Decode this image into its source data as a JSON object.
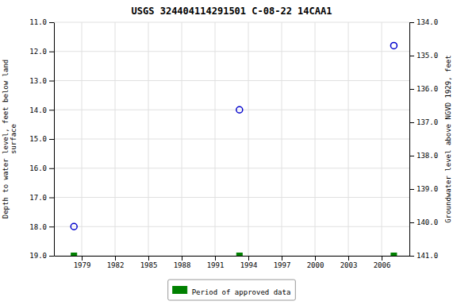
{
  "chart_data": {
    "type": "scatter",
    "title": "USGS 324404114291501 C-08-22 14CAA1",
    "ylabel": "Depth to water level, feet below land\nsurface",
    "y2label": "Groundwater level above NGVD 1929, feet",
    "x": [
      1978.3,
      1993.2,
      2007.1
    ],
    "series": [
      {
        "color": "#0000cc",
        "marker": "circle-open",
        "values": [
          18.0,
          14.0,
          11.8
        ]
      },
      {
        "name": "Period of approved data",
        "color": "#008000",
        "marker": "square",
        "values": [
          19.0,
          19.0,
          19.0
        ]
      }
    ],
    "xlim": [
      1976.5,
      2008.5
    ],
    "xticks": [
      1979,
      1982,
      1985,
      1988,
      1991,
      1994,
      1997,
      2000,
      2003,
      2006
    ],
    "ylim": [
      19.0,
      11.0
    ],
    "yticks": [
      {
        "value": 11.0,
        "label": "11.0"
      },
      {
        "value": 12.0,
        "label": "12.0"
      },
      {
        "value": 13.0,
        "label": "13.0"
      },
      {
        "value": 14.0,
        "label": "14.0"
      },
      {
        "value": 15.0,
        "label": "15.0"
      },
      {
        "value": 16.0,
        "label": "16.0"
      },
      {
        "value": 17.0,
        "label": "17.0"
      },
      {
        "value": 18.0,
        "label": "18.0"
      },
      {
        "value": 19.0,
        "label": "19.0"
      }
    ],
    "y2lim": [
      141.0,
      134.0
    ],
    "y2ticks": [
      {
        "value": 141.0,
        "label": "141.0"
      },
      {
        "value": 140.0,
        "label": "140.0"
      },
      {
        "value": 139.0,
        "label": "139.0"
      },
      {
        "value": 138.0,
        "label": "138.0"
      },
      {
        "value": 137.0,
        "label": "137.0"
      },
      {
        "value": 136.0,
        "label": "136.0"
      },
      {
        "value": 135.0,
        "label": "135.0"
      },
      {
        "value": 134.0,
        "label": "134.0"
      }
    ],
    "grid": true,
    "legend": "bottom"
  }
}
